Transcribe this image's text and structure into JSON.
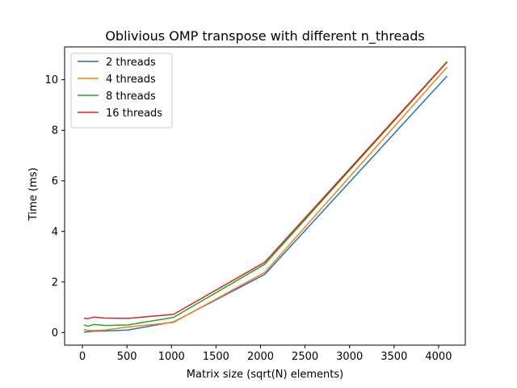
{
  "chart_data": {
    "type": "line",
    "title": "Oblivious OMP transpose with different n_threads",
    "xlabel": "Matrix size (sqrt(N) elements)",
    "ylabel": "Time (ms)",
    "xlim": [
      -200,
      4300
    ],
    "ylim": [
      -0.5,
      11.3
    ],
    "xticks": [
      0,
      500,
      1000,
      1500,
      2000,
      2500,
      3000,
      3500,
      4000
    ],
    "yticks": [
      0,
      2,
      4,
      6,
      8,
      10
    ],
    "grid": false,
    "legend_position": "upper-left",
    "x": [
      16,
      64,
      128,
      256,
      512,
      1024,
      2048,
      4096
    ],
    "series": [
      {
        "name": "2 threads",
        "color": "#1f77b4",
        "values": [
          0.02,
          0.03,
          0.05,
          0.06,
          0.1,
          0.42,
          2.3,
          10.15
        ]
      },
      {
        "name": "4 threads",
        "color": "#ff7f0e",
        "values": [
          0.12,
          0.08,
          0.08,
          0.1,
          0.22,
          0.4,
          2.38,
          10.5
        ]
      },
      {
        "name": "8 threads",
        "color": "#2ca02c",
        "values": [
          0.3,
          0.25,
          0.32,
          0.28,
          0.3,
          0.6,
          2.7,
          10.7
        ]
      },
      {
        "name": "16 threads",
        "color": "#d62728",
        "values": [
          0.56,
          0.55,
          0.61,
          0.57,
          0.56,
          0.72,
          2.78,
          10.72
        ]
      }
    ]
  }
}
